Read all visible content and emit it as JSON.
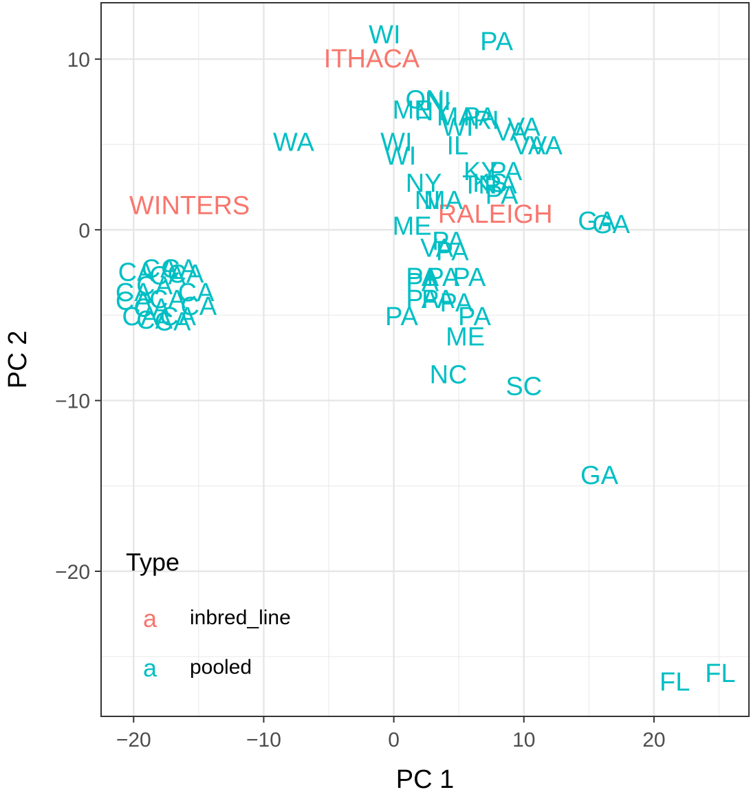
{
  "chart_data": {
    "type": "scatter",
    "marker": "text-label",
    "xlabel": "PC 1",
    "ylabel": "PC 2",
    "xlim": [
      -22.5,
      27.3
    ],
    "ylim": [
      -28.5,
      13.3
    ],
    "x_ticks": [
      -20,
      -10,
      0,
      10,
      20
    ],
    "y_ticks": [
      10,
      0,
      -10,
      -20
    ],
    "x_tick_labels": [
      "−20",
      "−10",
      "0",
      "10",
      "20"
    ],
    "y_tick_labels": [
      "10",
      "0",
      "−10",
      "−20"
    ],
    "grid": true,
    "colors": {
      "inbred_line": "#F8766D",
      "pooled": "#00BFC4"
    },
    "legend": {
      "title": "Type",
      "position": "bottom-left-inside",
      "key_glyph": "a",
      "entries": [
        {
          "key": "inbred_line",
          "label": "inbred_line"
        },
        {
          "key": "pooled",
          "label": "pooled"
        }
      ]
    },
    "series": [
      {
        "name": "inbred_line",
        "points": [
          {
            "label": "ITHACA",
            "x": -1.7,
            "y": 10.0
          },
          {
            "label": "WINTERS",
            "x": -15.7,
            "y": 1.4
          },
          {
            "label": "RALEIGH",
            "x": 7.8,
            "y": 0.9
          }
        ]
      },
      {
        "name": "pooled",
        "points": [
          {
            "label": "WI",
            "x": -0.7,
            "y": 11.4
          },
          {
            "label": "PA",
            "x": 7.9,
            "y": 11.0
          },
          {
            "label": "WA",
            "x": -7.7,
            "y": 5.1
          },
          {
            "label": "ON",
            "x": 2.4,
            "y": 7.6
          },
          {
            "label": "NI",
            "x": 3.4,
            "y": 7.5
          },
          {
            "label": "ME",
            "x": 1.4,
            "y": 7.0
          },
          {
            "label": "NY",
            "x": 3.0,
            "y": 6.9
          },
          {
            "label": "MA",
            "x": 4.8,
            "y": 6.6
          },
          {
            "label": "PA",
            "x": 6.6,
            "y": 6.6
          },
          {
            "label": "RI",
            "x": 7.1,
            "y": 6.4
          },
          {
            "label": "WI",
            "x": 4.9,
            "y": 6.0
          },
          {
            "label": "VA",
            "x": 10.0,
            "y": 6.0
          },
          {
            "label": "VA",
            "x": 9.0,
            "y": 5.7
          },
          {
            "label": "WI",
            "x": 0.2,
            "y": 5.1
          },
          {
            "label": "IL",
            "x": 4.9,
            "y": 4.9
          },
          {
            "label": "VA",
            "x": 10.4,
            "y": 4.9
          },
          {
            "label": "VA",
            "x": 11.7,
            "y": 4.9
          },
          {
            "label": "WI",
            "x": 0.5,
            "y": 4.3
          },
          {
            "label": "KY",
            "x": 6.7,
            "y": 3.4
          },
          {
            "label": "PA",
            "x": 8.6,
            "y": 3.4
          },
          {
            "label": "NY",
            "x": 2.3,
            "y": 2.7
          },
          {
            "label": "TN",
            "x": 6.6,
            "y": 2.6
          },
          {
            "label": "KS",
            "x": 7.4,
            "y": 2.7
          },
          {
            "label": "PA",
            "x": 8.2,
            "y": 2.6
          },
          {
            "label": "NI",
            "x": 2.6,
            "y": 1.7
          },
          {
            "label": "MA",
            "x": 3.8,
            "y": 1.7
          },
          {
            "label": "PA",
            "x": 8.3,
            "y": 2.0
          },
          {
            "label": "ME",
            "x": 1.4,
            "y": 0.2
          },
          {
            "label": "GA",
            "x": 15.6,
            "y": 0.5
          },
          {
            "label": "GA",
            "x": 16.7,
            "y": 0.3
          },
          {
            "label": "VA",
            "x": 3.3,
            "y": -1.1
          },
          {
            "label": "PA",
            "x": 4.5,
            "y": -1.3
          },
          {
            "label": "PA",
            "x": 4.2,
            "y": -0.7
          },
          {
            "label": "PA",
            "x": 2.2,
            "y": -2.8
          },
          {
            "label": "PA",
            "x": 3.8,
            "y": -2.8
          },
          {
            "label": "PA",
            "x": 5.8,
            "y": -2.8
          },
          {
            "label": "PA",
            "x": 2.2,
            "y": -3.1
          },
          {
            "label": "PA",
            "x": 2.2,
            "y": -4.1
          },
          {
            "label": "PA",
            "x": 3.4,
            "y": -4.1
          },
          {
            "label": "PA",
            "x": 4.8,
            "y": -4.3
          },
          {
            "label": "PA",
            "x": 0.6,
            "y": -5.1
          },
          {
            "label": "PA",
            "x": 6.2,
            "y": -5.1
          },
          {
            "label": "ME",
            "x": 5.5,
            "y": -6.3
          },
          {
            "label": "NC",
            "x": 4.2,
            "y": -8.5
          },
          {
            "label": "SC",
            "x": 10.0,
            "y": -9.2
          },
          {
            "label": "GA",
            "x": 15.8,
            "y": -14.4
          },
          {
            "label": "FL",
            "x": 21.6,
            "y": -26.5
          },
          {
            "label": "FL",
            "x": 25.1,
            "y": -26.0
          },
          {
            "label": "CA",
            "x": -19.8,
            "y": -2.5
          },
          {
            "label": "CA",
            "x": -18.0,
            "y": -2.3
          },
          {
            "label": "CA",
            "x": -16.5,
            "y": -2.3
          },
          {
            "label": "CA",
            "x": -16.0,
            "y": -2.6
          },
          {
            "label": "CA",
            "x": -17.4,
            "y": -2.7
          },
          {
            "label": "CA",
            "x": -18.4,
            "y": -3.3
          },
          {
            "label": "CA",
            "x": -20.0,
            "y": -3.7
          },
          {
            "label": "CA",
            "x": -15.2,
            "y": -3.7
          },
          {
            "label": "CA",
            "x": -20.0,
            "y": -4.2
          },
          {
            "label": "CA",
            "x": -17.4,
            "y": -4.1
          },
          {
            "label": "CA",
            "x": -15.0,
            "y": -4.5
          },
          {
            "label": "CA",
            "x": -18.6,
            "y": -4.6
          },
          {
            "label": "CA",
            "x": -19.5,
            "y": -5.1
          },
          {
            "label": "CA",
            "x": -18.4,
            "y": -5.3
          },
          {
            "label": "CA",
            "x": -16.6,
            "y": -5.1
          },
          {
            "label": "CA",
            "x": -17.0,
            "y": -5.4
          }
        ]
      }
    ]
  }
}
